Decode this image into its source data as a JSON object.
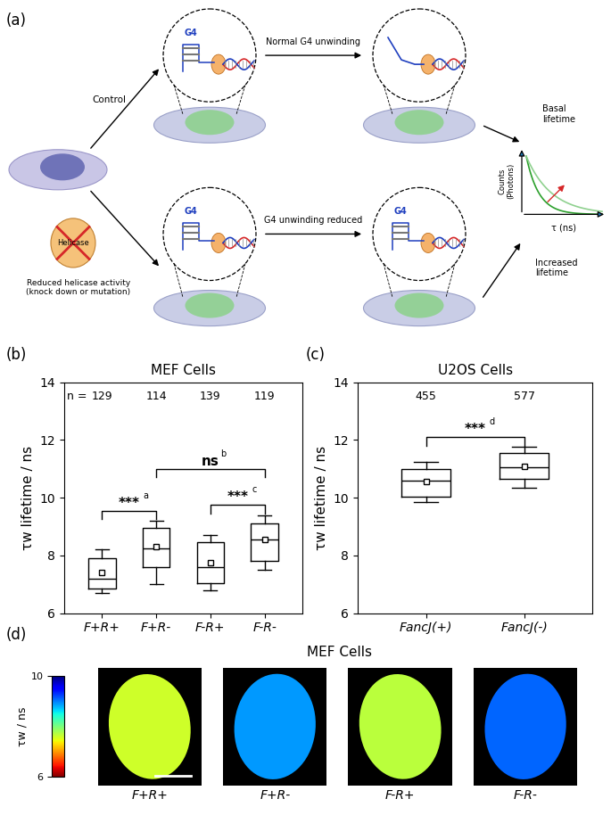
{
  "diagram": {
    "panel_label": "(a)",
    "texts": {
      "control": "Control",
      "reduced": "Reduced helicase activity\n(knock down or mutation)",
      "helicase": "Helicase",
      "normal": "Normal G4 unwinding",
      "reduced_unwinding": "G4 unwinding reduced",
      "basal": "Basal\nlifetime",
      "increased": "Increased\nlifetime",
      "g4": "G4",
      "counts": "Counts\n(Photons)",
      "tau": "τ (ns)"
    }
  },
  "chart_data": [
    {
      "type": "box",
      "panel_label": "(b)",
      "title": "MEF Cells",
      "y_label": "τw lifetime / ns",
      "categories": [
        "F+R+",
        "F+R-",
        "F-R+",
        "F-R-"
      ],
      "n_label": "n =",
      "n": [
        129,
        114,
        139,
        119
      ],
      "boxes": [
        {
          "whislo": 6.7,
          "q1": 6.85,
          "med": 7.2,
          "q3": 7.9,
          "whishi": 8.2,
          "mean": 7.4
        },
        {
          "whislo": 7.0,
          "q1": 7.6,
          "med": 8.25,
          "q3": 8.95,
          "whishi": 9.2,
          "mean": 8.3
        },
        {
          "whislo": 6.8,
          "q1": 7.05,
          "med": 7.6,
          "q3": 8.45,
          "whishi": 8.7,
          "mean": 7.75
        },
        {
          "whislo": 7.5,
          "q1": 7.8,
          "med": 8.55,
          "q3": 9.1,
          "whishi": 9.4,
          "mean": 8.55
        }
      ],
      "ylim": [
        6,
        14
      ],
      "yticks": [
        6,
        8,
        10,
        12,
        14
      ],
      "color": "#000000",
      "comparisons": [
        {
          "between": [
            "F+R+",
            "F+R-"
          ],
          "label": "***",
          "note": "a"
        },
        {
          "between": [
            "F+R-",
            "F-R-"
          ],
          "label": "ns",
          "note": "b"
        },
        {
          "between": [
            "F-R+",
            "F-R-"
          ],
          "label": "***",
          "note": "c"
        }
      ]
    },
    {
      "type": "box",
      "panel_label": "(c)",
      "title": "U2OS Cells",
      "y_label": "τw lifetime / ns",
      "categories": [
        "FancJ(+)",
        "FancJ(-)"
      ],
      "n": [
        455,
        577
      ],
      "boxes": [
        {
          "whislo": 9.85,
          "q1": 10.05,
          "med": 10.6,
          "q3": 11.0,
          "whishi": 11.25,
          "mean": 10.55
        },
        {
          "whislo": 10.35,
          "q1": 10.65,
          "med": 11.05,
          "q3": 11.55,
          "whishi": 11.75,
          "mean": 11.1
        }
      ],
      "ylim": [
        6,
        14
      ],
      "yticks": [
        6,
        8,
        10,
        12,
        14
      ],
      "color": "#000000",
      "comparisons": [
        {
          "between": [
            "FancJ(+)",
            "FancJ(-)"
          ],
          "label": "***",
          "note": "d"
        }
      ]
    },
    {
      "type": "image",
      "panel_label": "(d)",
      "title": "MEF Cells",
      "categories": [
        "F+R+",
        "F+R-",
        "F-R+",
        "F-R-"
      ],
      "values": [
        7.6,
        8.9,
        7.7,
        9.1
      ],
      "colorbar": {
        "range": [
          6,
          10
        ],
        "ticks": [
          6,
          10
        ],
        "label": "τw / ns"
      }
    }
  ]
}
